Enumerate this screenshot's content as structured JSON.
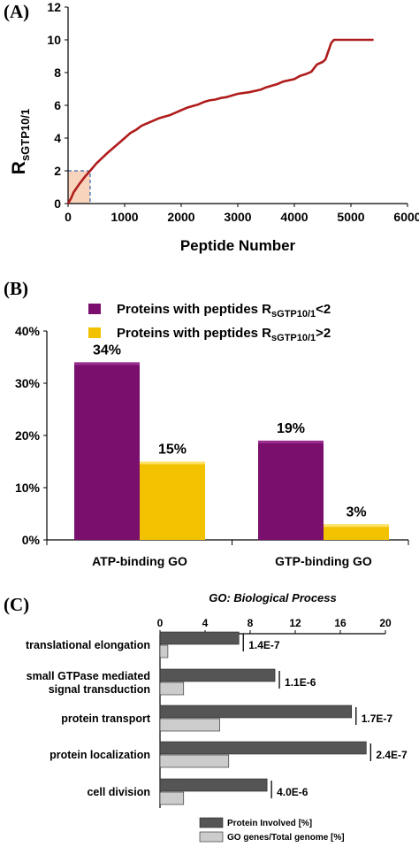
{
  "panels": {
    "a": "(A)",
    "b": "(B)",
    "c": "(C)"
  },
  "chart_data": [
    {
      "type": "line",
      "ylabel_main": "R",
      "ylabel_sub": "sGTP10/1",
      "xlabel": "Peptide Number",
      "xlim": [
        0,
        6000
      ],
      "ylim": [
        0,
        12
      ],
      "xticks": [
        "0",
        "1000",
        "2000",
        "3000",
        "4000",
        "5000",
        "6000"
      ],
      "yticks": [
        "0",
        "2",
        "4",
        "6",
        "8",
        "10",
        "12"
      ],
      "threshold_y": 2,
      "threshold_x": 390,
      "colors": {
        "line": "#b01c1c",
        "shade": "#f8d4bd",
        "dash": "#5a7fb8"
      },
      "series": [
        {
          "x": [
            0,
            50,
            100,
            200,
            300,
            390,
            500,
            700,
            900,
            1000,
            1100,
            1200,
            1300,
            1400,
            1500,
            1600,
            1700,
            1800,
            1900,
            2000,
            2100,
            2200,
            2300,
            2400,
            2500,
            2600,
            2700,
            2800,
            2900,
            3000,
            3200,
            3400,
            3500,
            3700,
            3800,
            4000,
            4100,
            4200,
            4300,
            4400,
            4500,
            4550,
            4600,
            4650,
            4700,
            5000,
            5400
          ],
          "y": [
            0,
            0.3,
            0.7,
            1.2,
            1.65,
            2.0,
            2.45,
            3.1,
            3.7,
            4.0,
            4.3,
            4.5,
            4.75,
            4.9,
            5.05,
            5.2,
            5.3,
            5.4,
            5.55,
            5.7,
            5.85,
            5.95,
            6.05,
            6.2,
            6.3,
            6.35,
            6.45,
            6.5,
            6.6,
            6.7,
            6.8,
            6.95,
            7.1,
            7.3,
            7.45,
            7.6,
            7.8,
            7.9,
            8.05,
            8.5,
            8.65,
            8.8,
            9.3,
            9.8,
            10.0,
            10.0,
            10.0
          ]
        }
      ]
    },
    {
      "type": "bar",
      "categories": [
        "ATP-binding GO",
        "GTP-binding GO"
      ],
      "yticks": [
        "0%",
        "10%",
        "20%",
        "30%",
        "40%"
      ],
      "ylim": [
        0,
        40
      ],
      "legend_position": "top",
      "series": [
        {
          "name": "Proteins with peptides R",
          "name_sub": "sGTP10/1",
          "name_suffix": "<2",
          "values": [
            34,
            19
          ],
          "labels": [
            "34%",
            "19%"
          ],
          "color": "#7a0f6e",
          "top": "#9b2f8f"
        },
        {
          "name": "Proteins with peptides R",
          "name_sub": "sGTP10/1",
          "name_suffix": ">2",
          "values": [
            15,
            3
          ],
          "labels": [
            "15%",
            "3%"
          ],
          "color": "#f2c200",
          "top": "#ffe36a"
        }
      ]
    },
    {
      "type": "bar",
      "orientation": "horizontal",
      "title": "GO: Biological Process",
      "xlim": [
        0,
        20
      ],
      "xticks": [
        "0",
        "4",
        "8",
        "12",
        "16",
        "20"
      ],
      "categories": [
        [
          "translational elongation"
        ],
        [
          "small GTPase mediated",
          "signal transduction"
        ],
        [
          "protein transport"
        ],
        [
          "protein localization"
        ],
        [
          "cell division"
        ]
      ],
      "pvalues": [
        "1.4E-7",
        "1.1E-6",
        "1.7E-7",
        "2.4E-7",
        "4.0E-6"
      ],
      "legend_position": "bottom-right",
      "series": [
        {
          "name": "Protein Involved [%]",
          "values": [
            7.0,
            10.2,
            17.0,
            18.3,
            9.5
          ],
          "color": "#555555"
        },
        {
          "name": "GO genes/Total genome [%]",
          "values": [
            0.7,
            2.1,
            5.3,
            6.1,
            2.1
          ],
          "color": "#cccccc"
        }
      ]
    }
  ]
}
